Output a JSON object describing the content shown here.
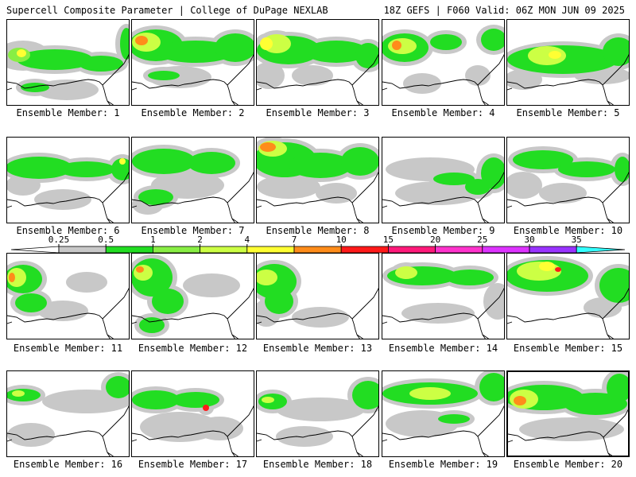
{
  "header": {
    "left": "Supercell Composite Parameter | College of DuPage NEXLAB",
    "right": "18Z GEFS | F060 Valid: 06Z MON JUN 09 2025"
  },
  "colorbar": {
    "levels": [
      "0.25",
      "0.5",
      "1",
      "2",
      "4",
      "7",
      "10",
      "15",
      "20",
      "25",
      "30",
      "35"
    ],
    "colors": [
      "#c8c8c8",
      "#22dd22",
      "#88ee44",
      "#ccff44",
      "#ffff33",
      "#ff8c1a",
      "#ff1a1a",
      "#ff1a7a",
      "#ff33cc",
      "#dd33ff",
      "#9933ff",
      "#aa66dd",
      "#33ffff"
    ]
  },
  "panels": [
    {
      "label": "Ensemble Member: 1"
    },
    {
      "label": "Ensemble Member: 2"
    },
    {
      "label": "Ensemble Member: 3"
    },
    {
      "label": "Ensemble Member: 4"
    },
    {
      "label": "Ensemble Member: 5"
    },
    {
      "label": "Ensemble Member: 6"
    },
    {
      "label": "Ensemble Member: 7"
    },
    {
      "label": "Ensemble Member: 8"
    },
    {
      "label": "Ensemble Member: 9"
    },
    {
      "label": "Ensemble Member: 10"
    },
    {
      "label": "Ensemble Member: 11"
    },
    {
      "label": "Ensemble Member: 12"
    },
    {
      "label": "Ensemble Member: 13"
    },
    {
      "label": "Ensemble Member: 14"
    },
    {
      "label": "Ensemble Member: 15"
    },
    {
      "label": "Ensemble Member: 16"
    },
    {
      "label": "Ensemble Member: 17"
    },
    {
      "label": "Ensemble Member: 18"
    },
    {
      "label": "Ensemble Member: 19"
    },
    {
      "label": "Ensemble Member: 20"
    }
  ]
}
